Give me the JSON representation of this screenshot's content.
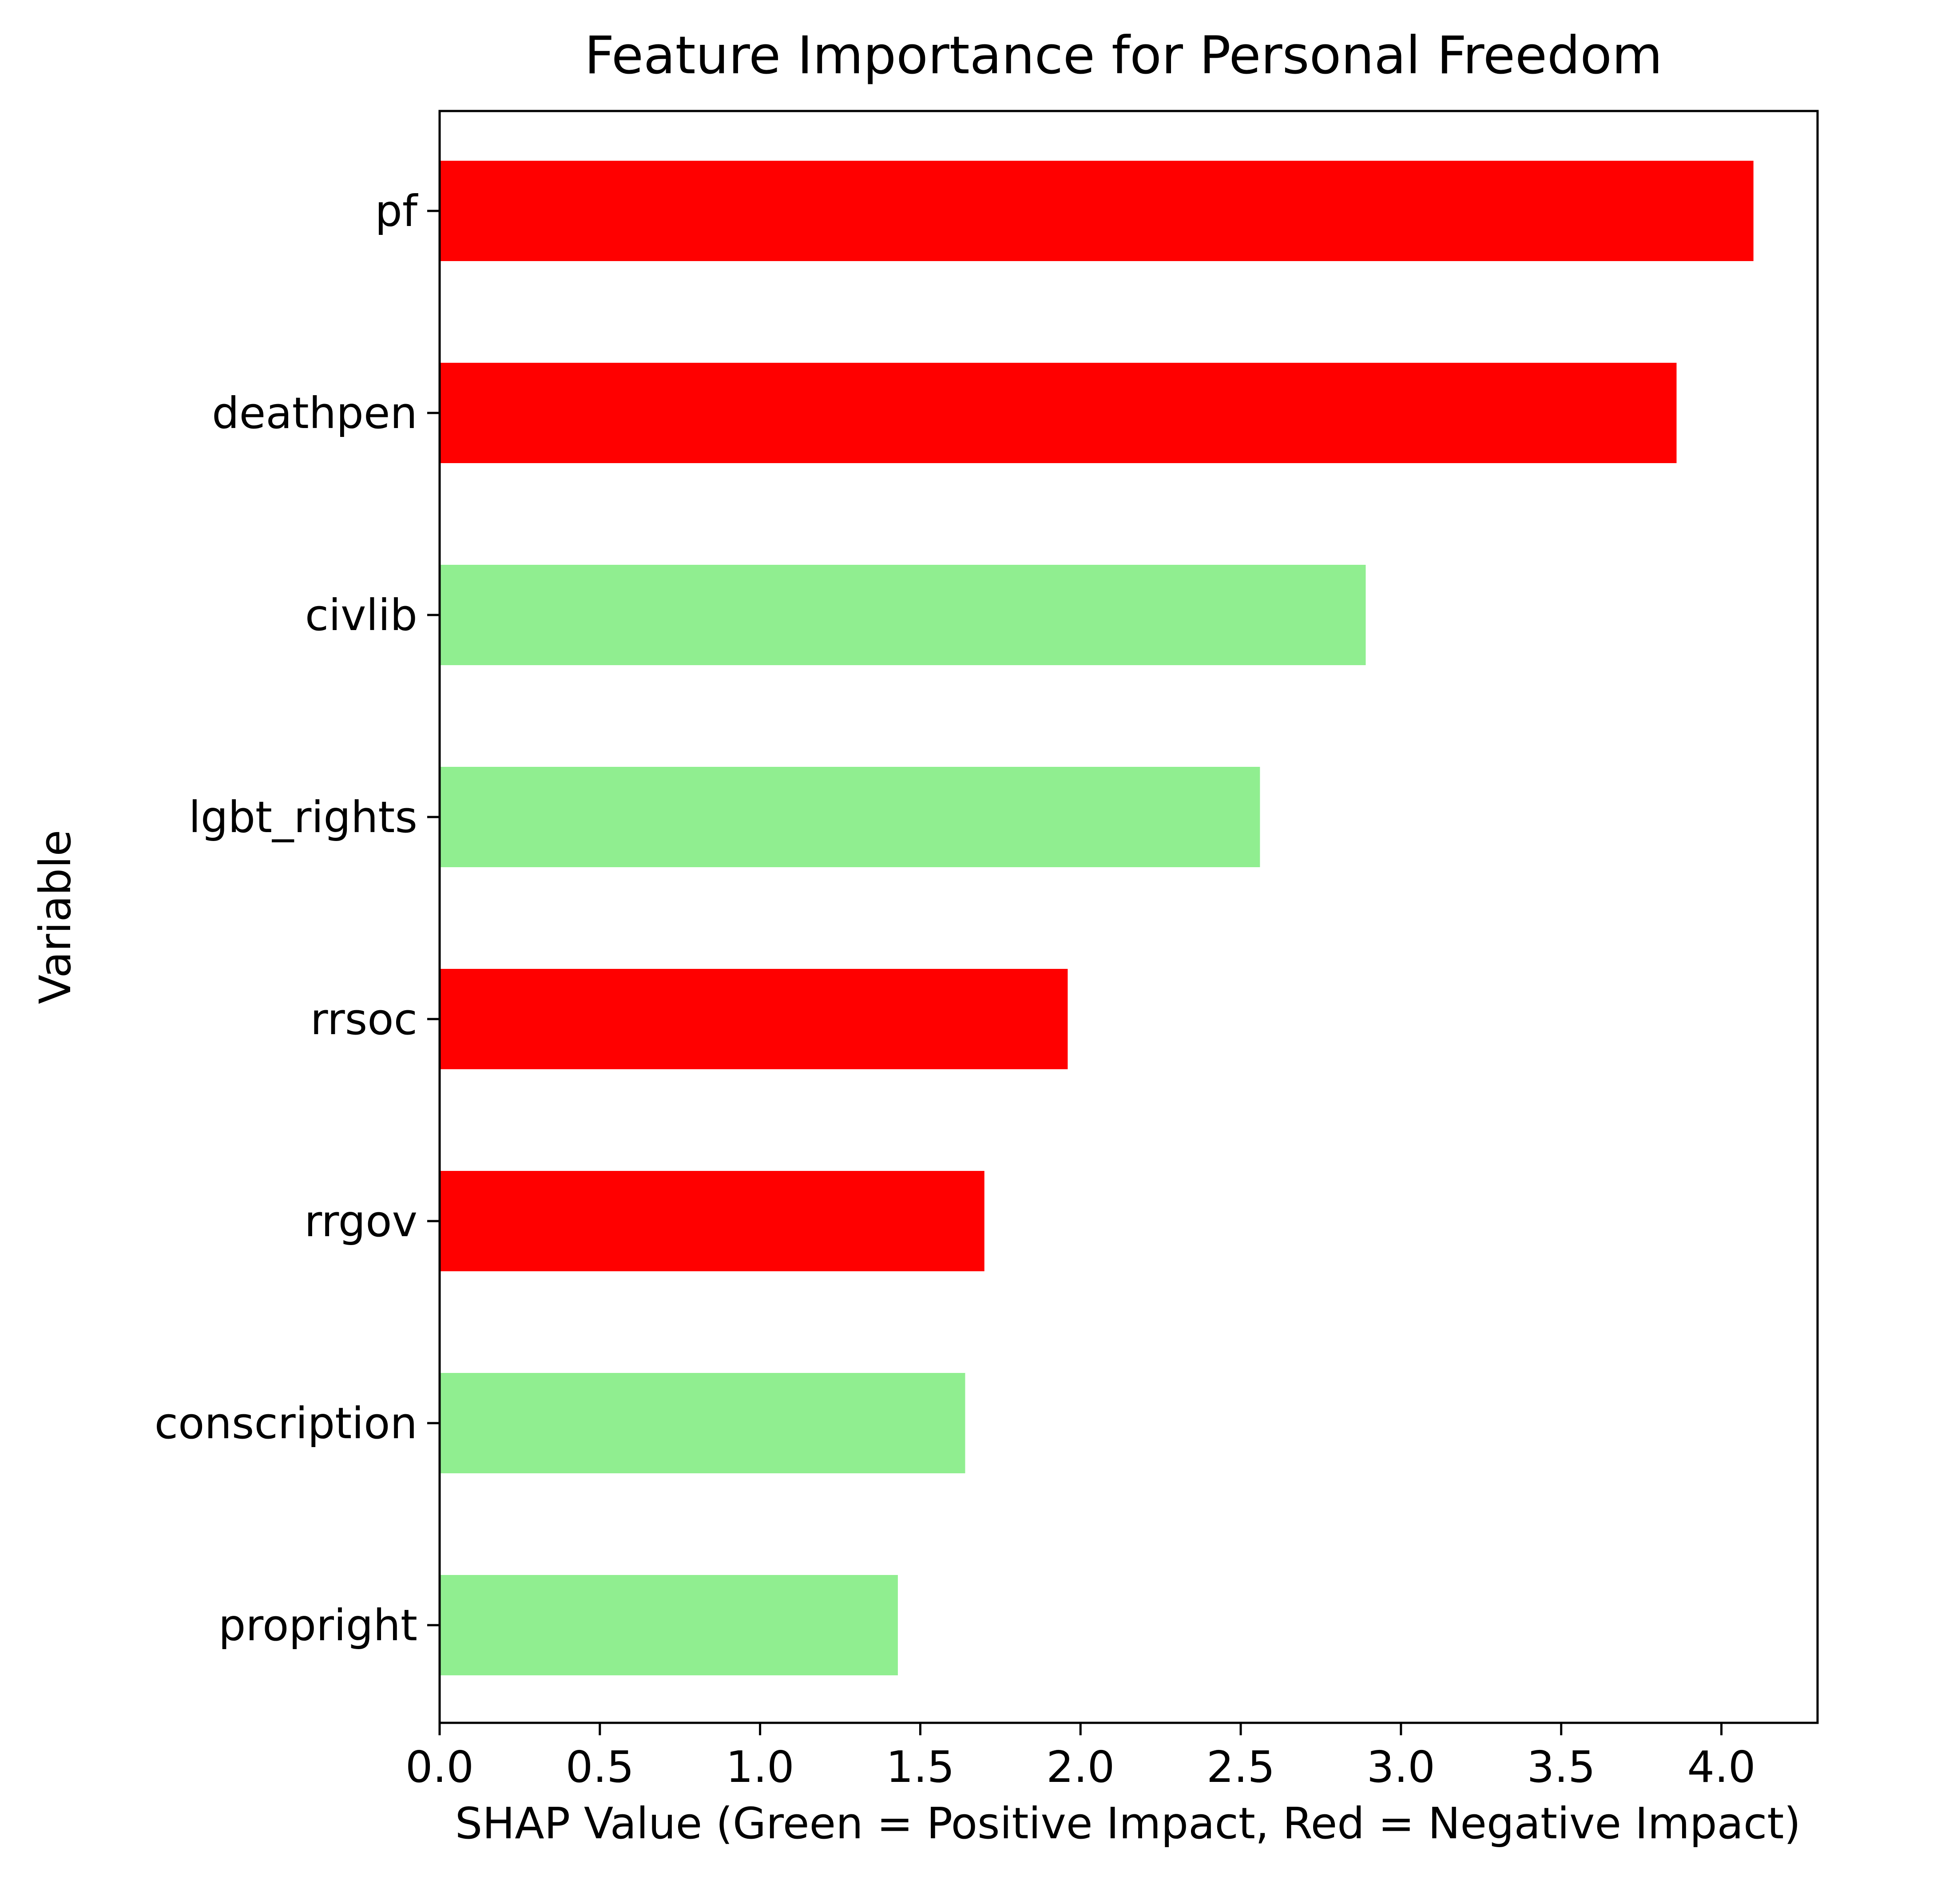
{
  "chart_data": {
    "type": "bar",
    "orientation": "horizontal",
    "title": "Feature Importance for Personal Freedom",
    "xlabel": "SHAP Value (Green = Positive Impact, Red = Negative Impact)",
    "ylabel": "Variable",
    "xlim": [
      0,
      4.3
    ],
    "xticks": [
      "0.0",
      "0.5",
      "1.0",
      "1.5",
      "2.0",
      "2.5",
      "3.0",
      "3.5",
      "4.0"
    ],
    "grid": false,
    "categories": [
      "pf",
      "deathpen",
      "civlib",
      "lgbt_rights",
      "rrsoc",
      "rrgov",
      "conscription",
      "propright"
    ],
    "values": [
      4.1,
      3.86,
      2.89,
      2.56,
      1.96,
      1.7,
      1.64,
      1.43
    ],
    "impact": [
      "negative",
      "negative",
      "positive",
      "positive",
      "negative",
      "negative",
      "positive",
      "positive"
    ],
    "colors": {
      "positive": "#90ee90",
      "negative": "#ff0000"
    }
  }
}
